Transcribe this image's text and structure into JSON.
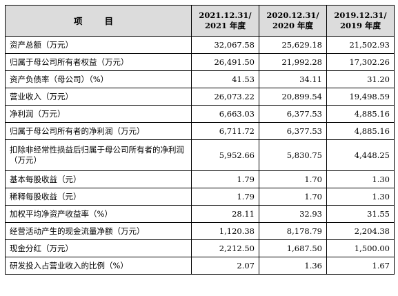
{
  "header": {
    "item": "项 目",
    "periods": [
      {
        "line1": "2021.12.31/",
        "line2": "2021 年度"
      },
      {
        "line1": "2020.12.31/",
        "line2": "2020 年度"
      },
      {
        "line1": "2019.12.31/",
        "line2": "2019 年度"
      }
    ]
  },
  "rows": [
    {
      "label": "资产总额（万元）",
      "values": [
        "32,067.58",
        "25,629.18",
        "21,502.93"
      ]
    },
    {
      "label": "归属于母公司所有者权益（万元）",
      "values": [
        "26,491.50",
        "21,992.28",
        "17,302.26"
      ]
    },
    {
      "label": "资产负债率（母公司）（%）",
      "values": [
        "41.53",
        "34.11",
        "31.20"
      ]
    },
    {
      "label": "营业收入（万元）",
      "values": [
        "26,073.22",
        "20,899.54",
        "19,498.59"
      ]
    },
    {
      "label": "净利润（万元）",
      "values": [
        "6,663.03",
        "6,377.53",
        "4,885.16"
      ]
    },
    {
      "label": "归属于母公司所有者的净利润（万元）",
      "values": [
        "6,711.72",
        "6,377.53",
        "4,885.16"
      ]
    },
    {
      "label": "扣除非经常性损益后归属于母公司所有者的净利润（万元）",
      "values": [
        "5,952.66",
        "5,830.75",
        "4,448.25"
      ]
    },
    {
      "label": "基本每股收益（元）",
      "values": [
        "1.79",
        "1.70",
        "1.30"
      ]
    },
    {
      "label": "稀释每股收益（元）",
      "values": [
        "1.79",
        "1.70",
        "1.30"
      ]
    },
    {
      "label": "加权平均净资产收益率（%）",
      "values": [
        "28.11",
        "32.93",
        "31.55"
      ]
    },
    {
      "label": "经营活动产生的现金流量净额（万元）",
      "values": [
        "1,120.38",
        "8,178.79",
        "2,204.38"
      ]
    },
    {
      "label": "现金分红（万元）",
      "values": [
        "2,212.50",
        "1,687.50",
        "1,500.00"
      ]
    },
    {
      "label": "研发投入占营业收入的比例（%）",
      "values": [
        "2.07",
        "1.36",
        "1.67"
      ]
    }
  ]
}
